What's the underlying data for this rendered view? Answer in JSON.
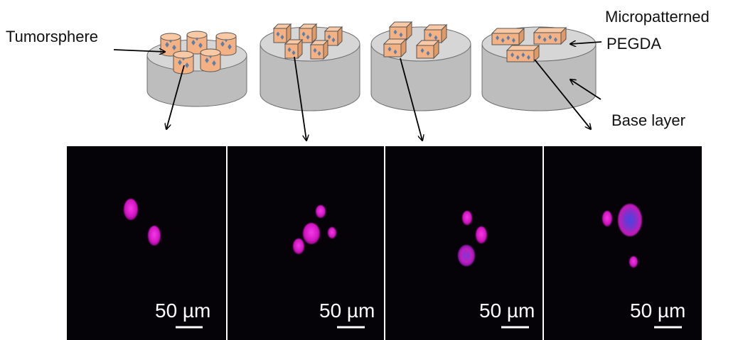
{
  "labels": {
    "tumorsphere": "Tumorsphere",
    "micropatterned_line1": "Micropatterned",
    "micropatterned_line2": "PEGDA",
    "base_layer": "Base layer"
  },
  "panels": [
    {
      "scale_label": "50 µm"
    },
    {
      "scale_label": "50 µm"
    },
    {
      "scale_label": "50 µm"
    },
    {
      "scale_label": "50 µm"
    }
  ],
  "colors": {
    "disc_side": "#bdbdbd",
    "disc_top": "#d6d6d6",
    "pattern_fill": "#f4b183",
    "pattern_mark": "#5b7fa8",
    "micrograph_bg": "#050308",
    "nucleus_magenta": "#e31ad2",
    "nucleus_blue": "#3b3bd6"
  },
  "shapes": [
    "cylinder",
    "cube",
    "cuboid",
    "elongated-cuboid"
  ]
}
